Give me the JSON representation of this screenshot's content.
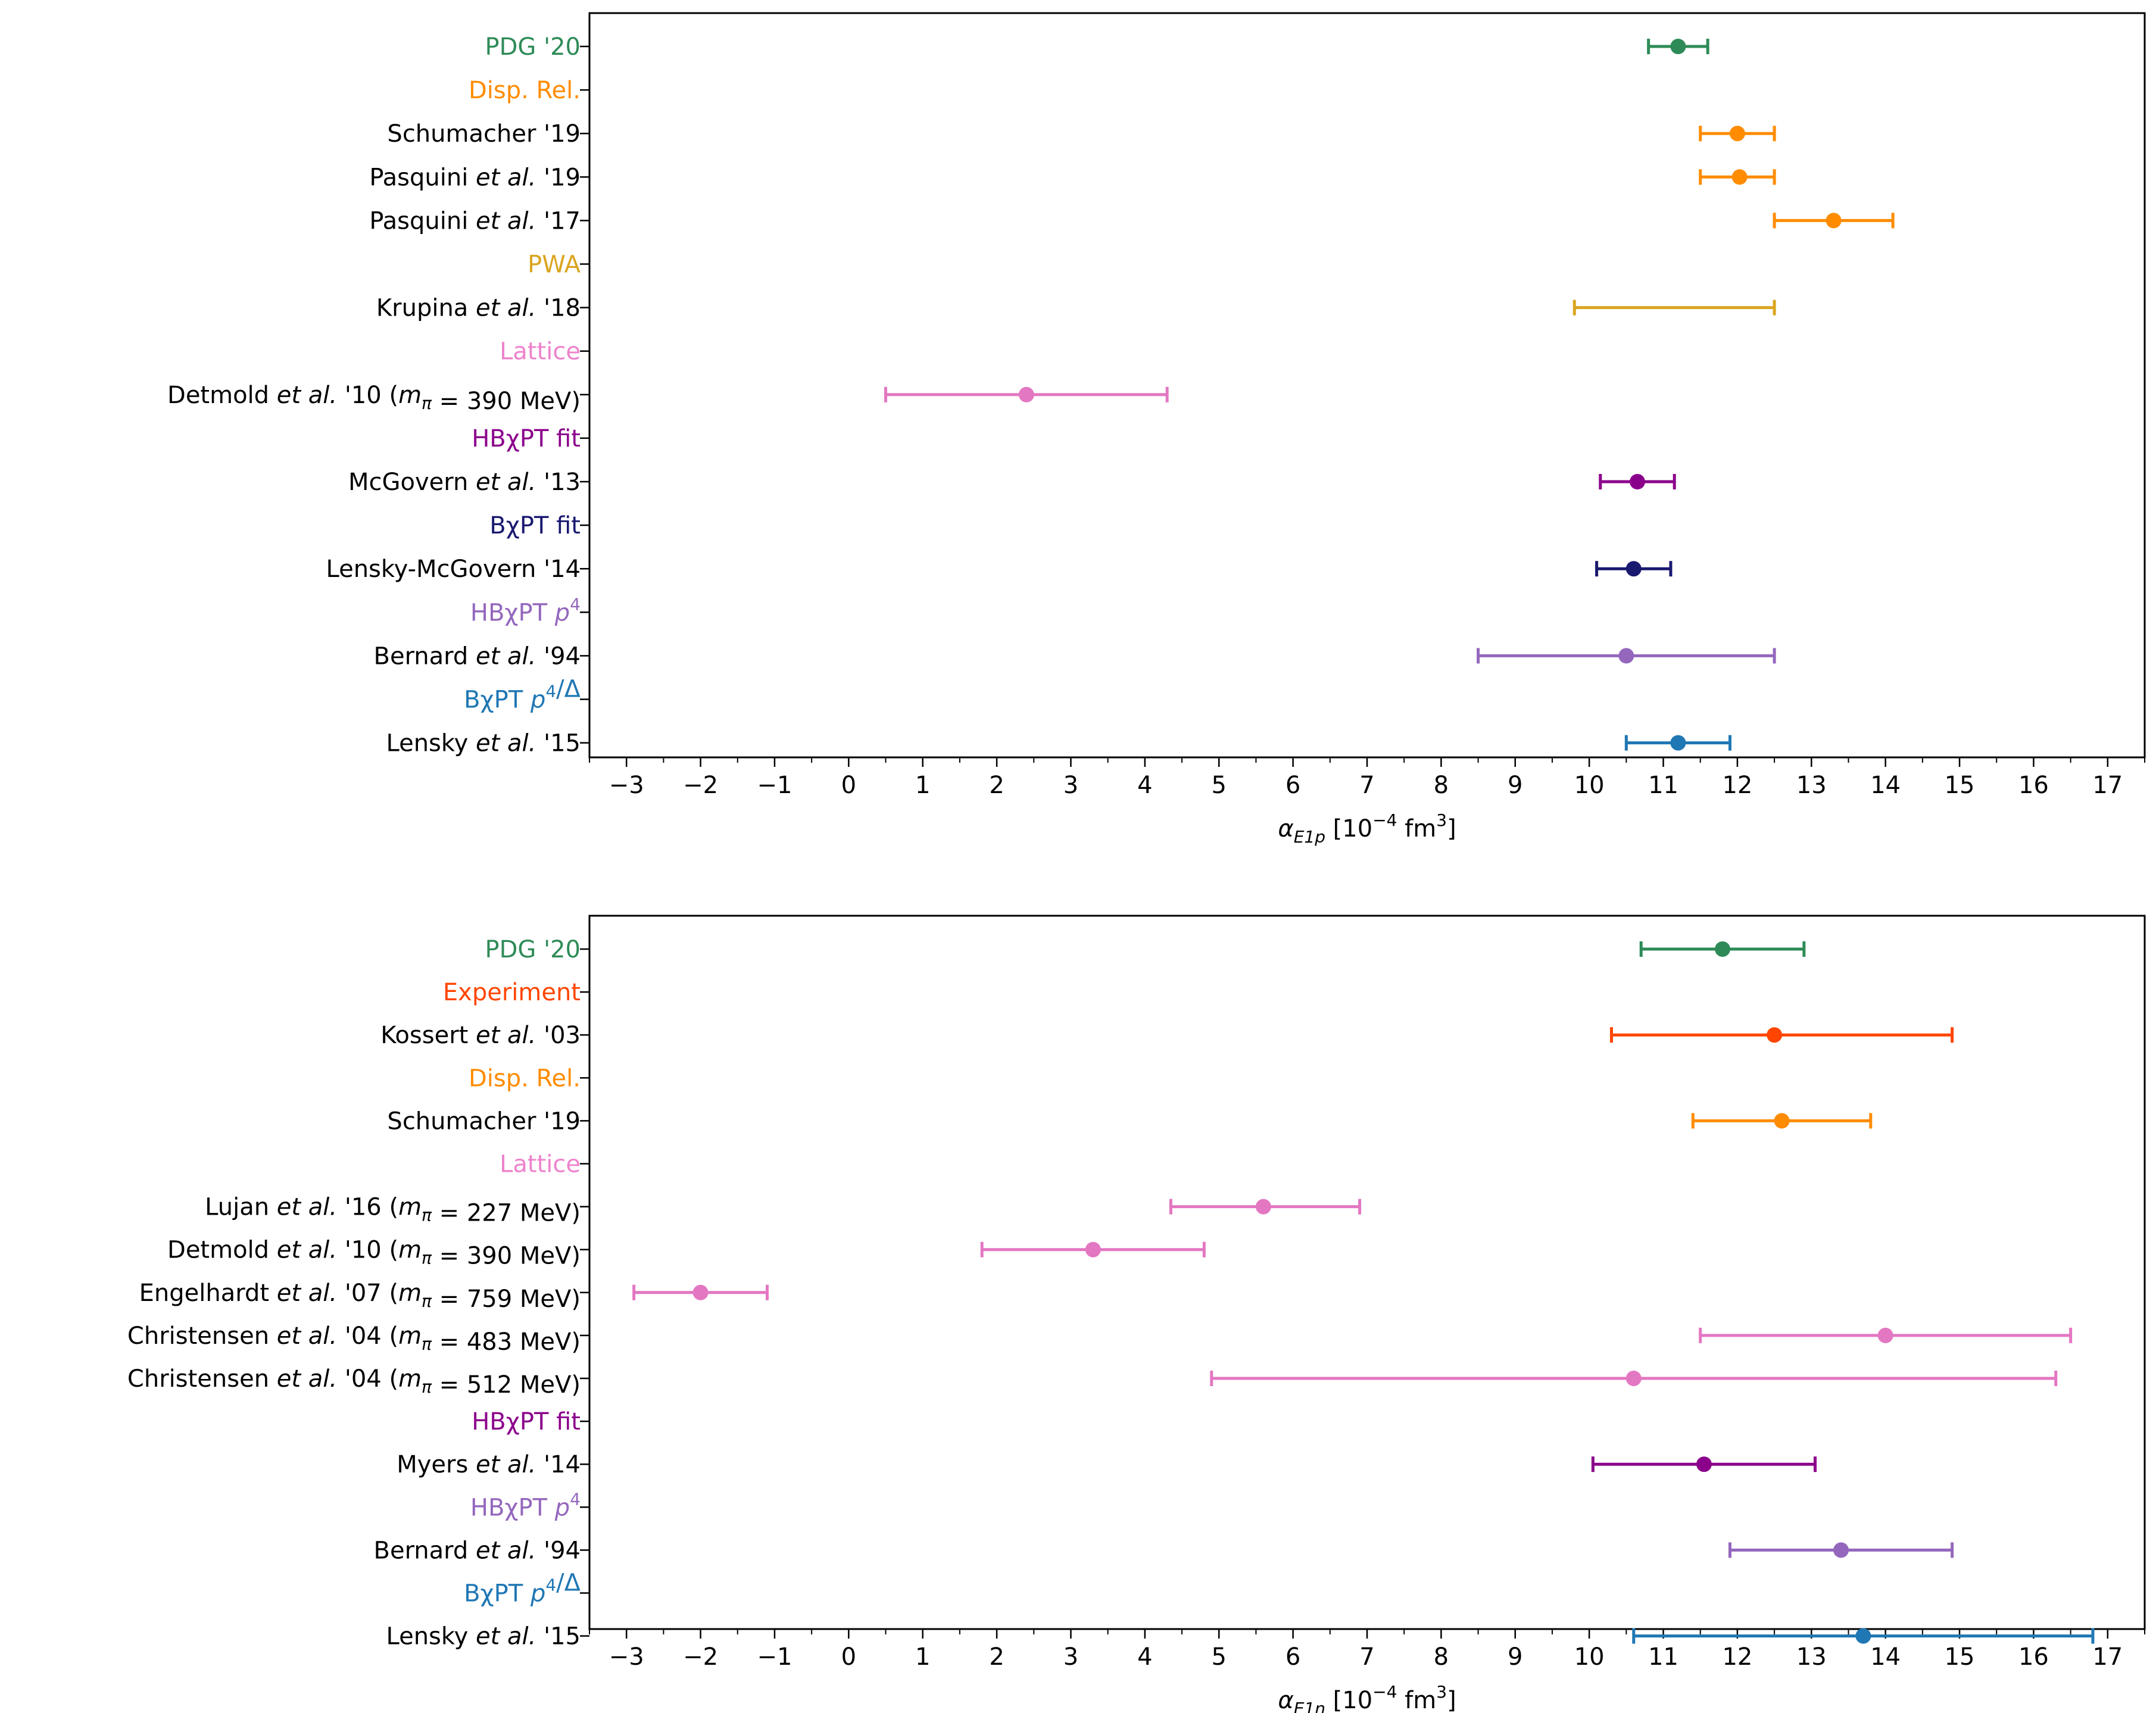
{
  "chart_data": [
    {
      "type": "errorbar",
      "title": "",
      "xlabel": "α_E1p [10^-4 fm^3]",
      "xlabel_parts": {
        "sym": "α",
        "sub": "E1p",
        "bracket_open": " [10",
        "exp": "−4",
        "unit": " fm",
        "unit_exp": "3",
        "bracket_close": "]"
      },
      "xlim": [
        -3.5,
        17.5
      ],
      "xticks": [
        -3,
        -2,
        -1,
        0,
        1,
        2,
        3,
        4,
        5,
        6,
        7,
        8,
        9,
        10,
        11,
        12,
        13,
        14,
        15,
        16,
        17
      ],
      "xticklabels": [
        "−3",
        "−2",
        "−1",
        "0",
        "1",
        "2",
        "3",
        "4",
        "5",
        "6",
        "7",
        "8",
        "9",
        "10",
        "11",
        "12",
        "13",
        "14",
        "15",
        "16",
        "17"
      ],
      "rows": [
        {
          "kind": "point",
          "label": "PDG '20",
          "label_color": "#2e8b57",
          "color": "#2e8b57",
          "value": 11.2,
          "low": 10.8,
          "high": 11.6,
          "marker": true
        },
        {
          "kind": "header",
          "label": "Disp. Rel.",
          "color": "#ff8c00"
        },
        {
          "kind": "point",
          "label": "Schumacher '19",
          "color": "#ff8c00",
          "value": 12.0,
          "low": 11.5,
          "high": 12.5,
          "marker": true
        },
        {
          "kind": "point",
          "label": "Pasquini et al. '19",
          "color": "#ff8c00",
          "value": 12.03,
          "low": 11.5,
          "high": 12.5,
          "marker": true
        },
        {
          "kind": "point",
          "label": "Pasquini et al. '17",
          "color": "#ff8c00",
          "value": 13.3,
          "low": 12.5,
          "high": 14.1,
          "marker": true
        },
        {
          "kind": "header",
          "label": "PWA",
          "color": "#daa520"
        },
        {
          "kind": "point",
          "label": "Krupina et al. '18",
          "color": "#daa520",
          "value": 11.15,
          "low": 9.8,
          "high": 12.5,
          "marker": false
        },
        {
          "kind": "header",
          "label": "Lattice",
          "color": "#ee82cc"
        },
        {
          "kind": "point",
          "label": "Detmold et al. '10 (m_π = 390 MeV)",
          "color": "#e377c2",
          "value": 2.4,
          "low": 0.5,
          "high": 4.3,
          "marker": true
        },
        {
          "kind": "header",
          "label": "HBχPT fit",
          "color": "#8b008b"
        },
        {
          "kind": "point",
          "label": "McGovern et al. '13",
          "color": "#8b008b",
          "value": 10.65,
          "low": 10.15,
          "high": 11.15,
          "marker": true
        },
        {
          "kind": "header",
          "label": "BχPT fit",
          "color": "#191970"
        },
        {
          "kind": "point",
          "label": "Lensky-McGovern '14",
          "color": "#191970",
          "value": 10.6,
          "low": 10.1,
          "high": 11.1,
          "marker": true
        },
        {
          "kind": "header",
          "label": "HBχPT p^4",
          "color": "#9467bd"
        },
        {
          "kind": "point",
          "label": "Bernard et al. '94",
          "color": "#9467bd",
          "value": 10.5,
          "low": 8.5,
          "high": 12.5,
          "marker": true
        },
        {
          "kind": "header",
          "label": "BχPT p^4/Δ",
          "color": "#1f77b4"
        },
        {
          "kind": "point",
          "label": "Lensky et al. '15",
          "color": "#1f77b4",
          "value": 11.2,
          "low": 10.5,
          "high": 11.9,
          "marker": true
        }
      ]
    },
    {
      "type": "errorbar",
      "title": "",
      "xlabel": "α_E1n [10^-4 fm^3]",
      "xlabel_parts": {
        "sym": "α",
        "sub": "E1n",
        "bracket_open": " [10",
        "exp": "−4",
        "unit": " fm",
        "unit_exp": "3",
        "bracket_close": "]"
      },
      "xlim": [
        -3.5,
        17.5
      ],
      "xticks": [
        -3,
        -2,
        -1,
        0,
        1,
        2,
        3,
        4,
        5,
        6,
        7,
        8,
        9,
        10,
        11,
        12,
        13,
        14,
        15,
        16,
        17
      ],
      "xticklabels": [
        "−3",
        "−2",
        "−1",
        "0",
        "1",
        "2",
        "3",
        "4",
        "5",
        "6",
        "7",
        "8",
        "9",
        "10",
        "11",
        "12",
        "13",
        "14",
        "15",
        "16",
        "17"
      ],
      "rows": [
        {
          "kind": "point",
          "label": "PDG '20",
          "label_color": "#2e8b57",
          "color": "#2e8b57",
          "value": 11.8,
          "low": 10.7,
          "high": 12.9,
          "marker": true
        },
        {
          "kind": "header",
          "label": "Experiment",
          "color": "#ff4500"
        },
        {
          "kind": "point",
          "label": "Kossert et al. '03",
          "color": "#ff4500",
          "value": 12.5,
          "low": 10.3,
          "high": 14.9,
          "marker": true
        },
        {
          "kind": "header",
          "label": "Disp. Rel.",
          "color": "#ff8c00"
        },
        {
          "kind": "point",
          "label": "Schumacher '19",
          "color": "#ff8c00",
          "value": 12.6,
          "low": 11.4,
          "high": 13.8,
          "marker": true
        },
        {
          "kind": "header",
          "label": "Lattice",
          "color": "#ee82cc"
        },
        {
          "kind": "point",
          "label": "Lujan et al. '16 (m_π = 227 MeV)",
          "color": "#e377c2",
          "value": 5.6,
          "low": 4.35,
          "high": 6.9,
          "marker": true
        },
        {
          "kind": "point",
          "label": "Detmold et al. '10 (m_π = 390 MeV)",
          "color": "#e377c2",
          "value": 3.3,
          "low": 1.8,
          "high": 4.8,
          "marker": true
        },
        {
          "kind": "point",
          "label": "Engelhardt et al. '07 (m_π = 759 MeV)",
          "color": "#e377c2",
          "value": -2.0,
          "low": -2.9,
          "high": -1.1,
          "marker": true
        },
        {
          "kind": "point",
          "label": "Christensen et al. '04 (m_π = 483 MeV)",
          "color": "#e377c2",
          "value": 14.0,
          "low": 11.5,
          "high": 16.5,
          "marker": true
        },
        {
          "kind": "point",
          "label": "Christensen et al. '04 (m_π = 512 MeV)",
          "color": "#e377c2",
          "value": 10.6,
          "low": 4.9,
          "high": 16.3,
          "marker": true
        },
        {
          "kind": "header",
          "label": "HBχPT fit",
          "color": "#8b008b"
        },
        {
          "kind": "point",
          "label": "Myers et al. '14",
          "color": "#8b008b",
          "value": 11.55,
          "low": 10.05,
          "high": 13.05,
          "marker": true
        },
        {
          "kind": "header",
          "label": "HBχPT p^4",
          "color": "#9467bd"
        },
        {
          "kind": "point",
          "label": "Bernard et al. '94",
          "color": "#9467bd",
          "value": 13.4,
          "low": 11.9,
          "high": 14.9,
          "marker": true
        },
        {
          "kind": "header",
          "label": "BχPT p^4/Δ",
          "color": "#1f77b4"
        },
        {
          "kind": "point",
          "label": "Lensky et al. '15",
          "color": "#1f77b4",
          "value": 13.7,
          "low": 10.6,
          "high": 16.8,
          "marker": true
        }
      ]
    }
  ]
}
